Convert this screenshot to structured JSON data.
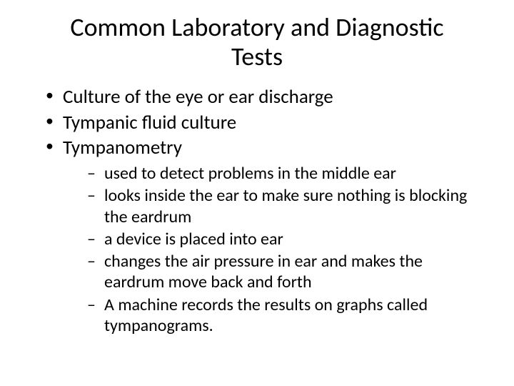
{
  "slide": {
    "title": "Common Laboratory and Diagnostic Tests",
    "title_fontsize": 36,
    "title_align": "center",
    "background_color": "#ffffff",
    "text_color": "#000000",
    "bullets": [
      {
        "text": "Culture of the eye or ear discharge"
      },
      {
        "text": "Tympanic fluid culture"
      },
      {
        "text": "Tympanometry"
      }
    ],
    "sub_bullets": [
      {
        "text": "used to detect problems in the middle ear"
      },
      {
        "text": "looks inside the ear to make sure nothing is blocking the eardrum"
      },
      {
        "text": "a device is placed into ear"
      },
      {
        "text": "changes the air pressure in ear and makes the eardrum move back and forth"
      },
      {
        "text": "A machine records the results on graphs called tympanograms."
      }
    ],
    "level1_fontsize": 27,
    "level2_fontsize": 24,
    "level1_marker": "•",
    "level2_marker": "–"
  }
}
